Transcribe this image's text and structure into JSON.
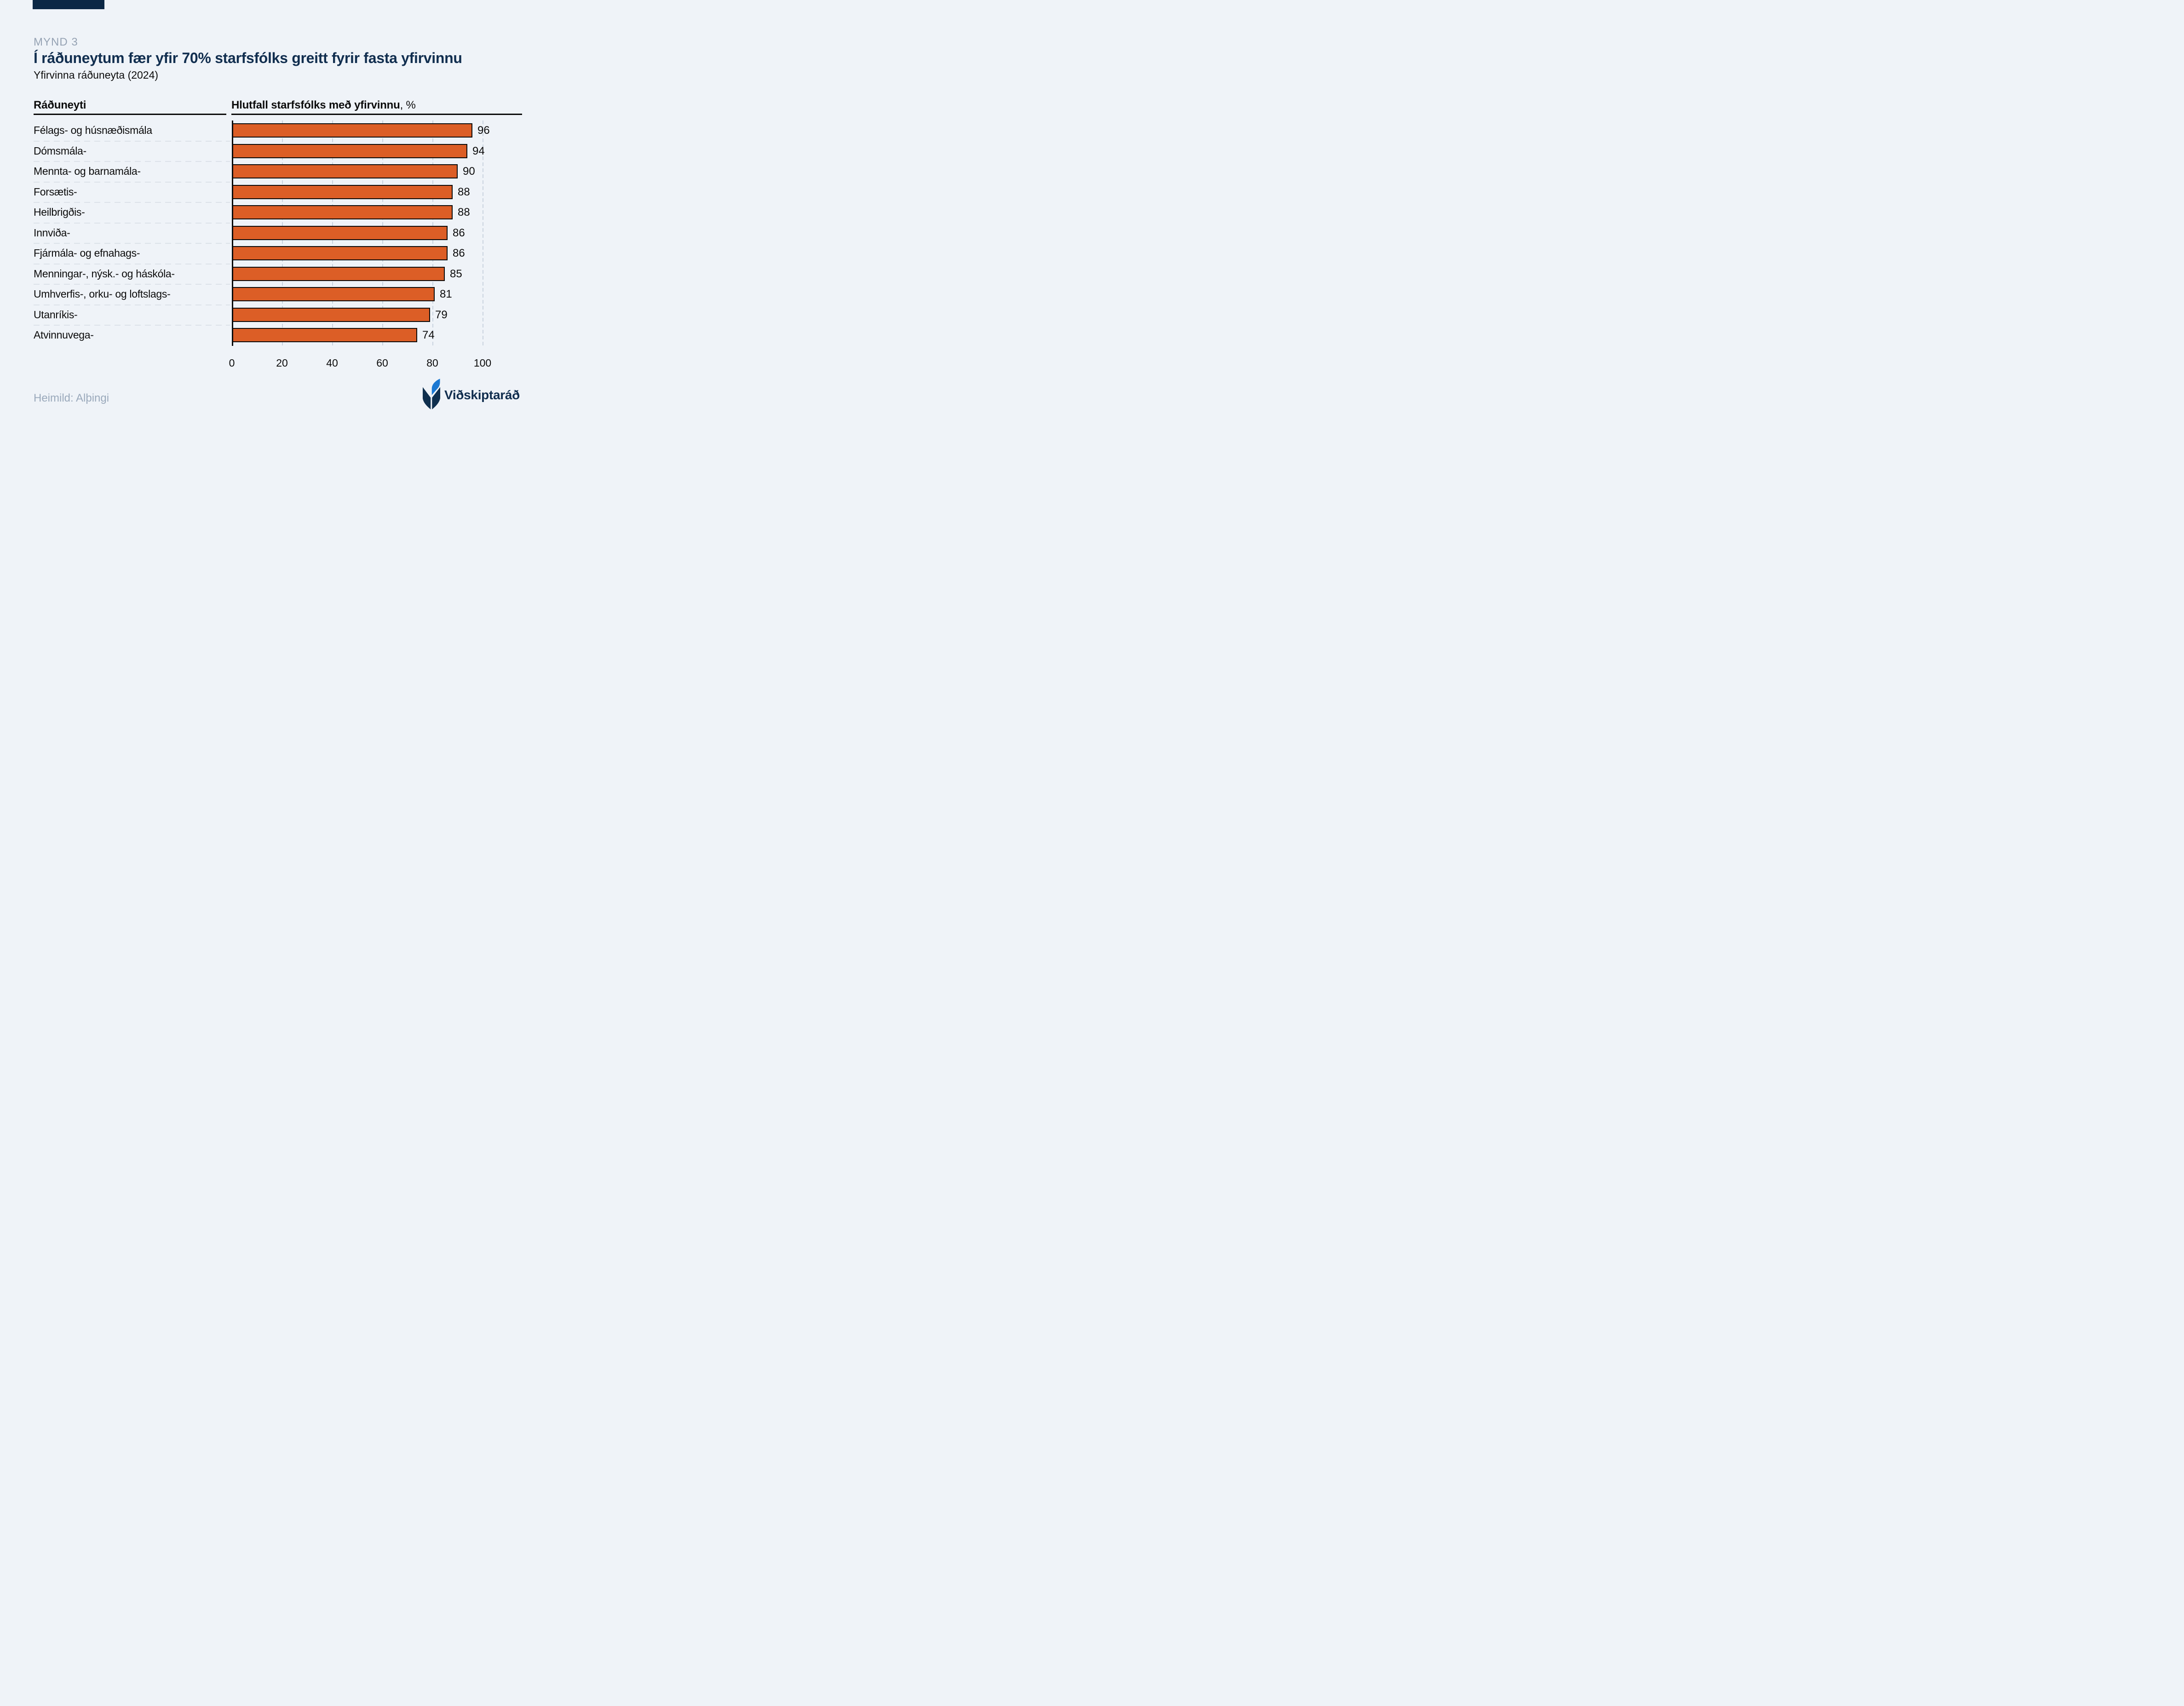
{
  "figure_label": "MYND 3",
  "title": "Í ráðuneytum fær yfir 70% starfsfólks greitt fyrir fasta yfirvinnu",
  "subtitle": "Yfirvinna ráðuneyta (2024)",
  "table_headers": {
    "left": "Ráðuneyti",
    "right_bold": "Hlutfall starfsfólks með yfirvinnu",
    "right_suffix": ", %"
  },
  "chart_data": {
    "type": "bar",
    "orientation": "horizontal",
    "title": "Yfirvinna ráðuneyta (2024)",
    "ylabel": "Ráðuneyti",
    "xlabel": "Hlutfall starfsfólks með yfirvinnu, %",
    "categories": [
      "Félags- og húsnæðismála",
      "Dómsmála-",
      "Mennta- og barnamála-",
      "Forsætis-",
      "Heilbrigðis-",
      "Innviða-",
      "Fjármála- og efnahags-",
      "Menningar-, nýsk.- og háskóla-",
      "Umhverfis-, orku- og loftslags-",
      "Utanríkis-",
      "Atvinnuvega-"
    ],
    "values": [
      96,
      94,
      90,
      88,
      88,
      86,
      86,
      85,
      81,
      79,
      74
    ],
    "x_ticks": [
      0,
      20,
      40,
      60,
      80,
      100
    ],
    "xlim": [
      0,
      100
    ],
    "value_labels_shown": true,
    "grid": "dashed-vertical-gridlines",
    "legend": "none"
  },
  "footer": {
    "source": "Heimild: Alþingi"
  },
  "logo": {
    "text": "Viðskiptaráð",
    "icon": "book-leaf-logo-icon"
  },
  "colors": {
    "background": "#eff3f8",
    "bar_fill": "#dc5e26",
    "bar_border": "#0b0b0b",
    "title_navy": "#112e4f",
    "brand_bar_navy": "#0b2745",
    "figure_label_gray": "#95a2b3",
    "source_gray": "#9aa9bb",
    "gridline": "#c9d3df",
    "row_separator": "#dce2e9",
    "logo_blue": "#1b78d2",
    "logo_navy": "#0f2f4e"
  }
}
